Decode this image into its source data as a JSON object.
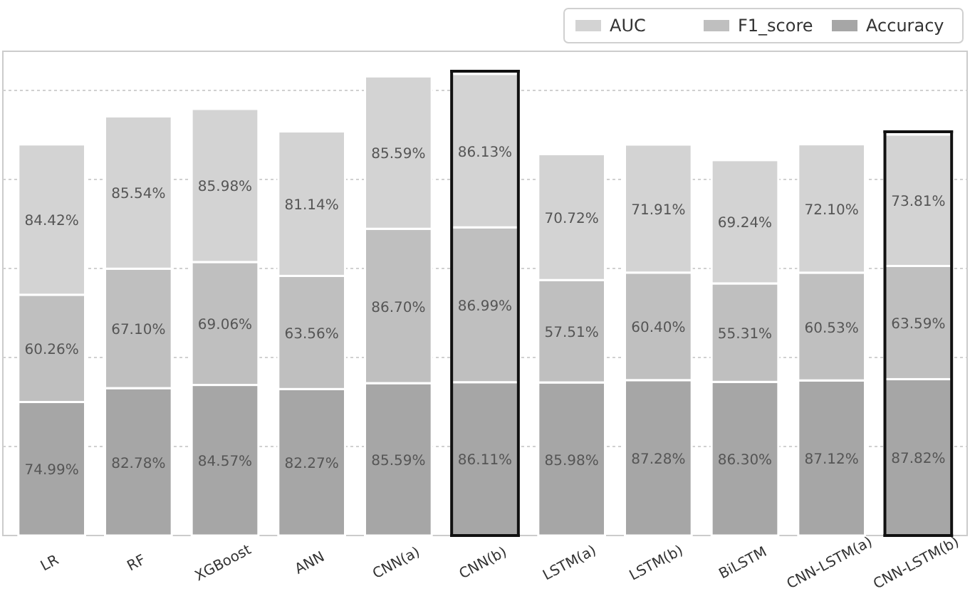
{
  "chart_data": {
    "type": "bar",
    "stacked": true,
    "categories": [
      "LR",
      "RF",
      "XGBoost",
      "ANN",
      "CNN(a)",
      "CNN(b)",
      "LSTM(a)",
      "LSTM(b)",
      "BiLSTM",
      "CNN-LSTM(a)",
      "CNN-LSTM(b)"
    ],
    "series": [
      {
        "name": "Accuracy",
        "color": "#a6a6a6",
        "values": [
          74.99,
          82.78,
          84.57,
          82.27,
          85.59,
          86.11,
          85.98,
          87.28,
          86.3,
          87.12,
          87.82
        ],
        "value_labels": [
          "74.99%",
          "82.78%",
          "84.57%",
          "82.27%",
          "85.59%",
          "86.11%",
          "85.98%",
          "87.28%",
          "86.30%",
          "87.12%",
          "87.82%"
        ]
      },
      {
        "name": "F1_score",
        "color": "#bfbfbf",
        "values": [
          60.26,
          67.1,
          69.06,
          63.56,
          86.7,
          86.99,
          57.51,
          60.4,
          55.31,
          60.53,
          63.59
        ],
        "value_labels": [
          "60.26%",
          "67.10%",
          "69.06%",
          "63.56%",
          "86.70%",
          "86.99%",
          "57.51%",
          "60.40%",
          "55.31%",
          "60.53%",
          "63.59%"
        ]
      },
      {
        "name": "AUC",
        "color": "#d3d3d3",
        "values": [
          84.42,
          85.54,
          85.98,
          81.14,
          85.59,
          86.13,
          70.72,
          71.91,
          69.24,
          72.1,
          73.81
        ],
        "value_labels": [
          "84.42%",
          "85.54%",
          "85.98%",
          "81.14%",
          "85.59%",
          "86.13%",
          "70.72%",
          "71.91%",
          "69.24%",
          "72.10%",
          "73.81%"
        ]
      }
    ],
    "ylim": [
      0,
      272
    ],
    "yticks": [
      {
        "value": 50,
        "label": null
      },
      {
        "value": 100,
        "label": null
      },
      {
        "value": 150,
        "label": null
      },
      {
        "value": 200,
        "label": null
      },
      {
        "value": 250,
        "label": null
      }
    ],
    "tick_labels": "x",
    "grid": "y",
    "legend": "top right"
  }
}
